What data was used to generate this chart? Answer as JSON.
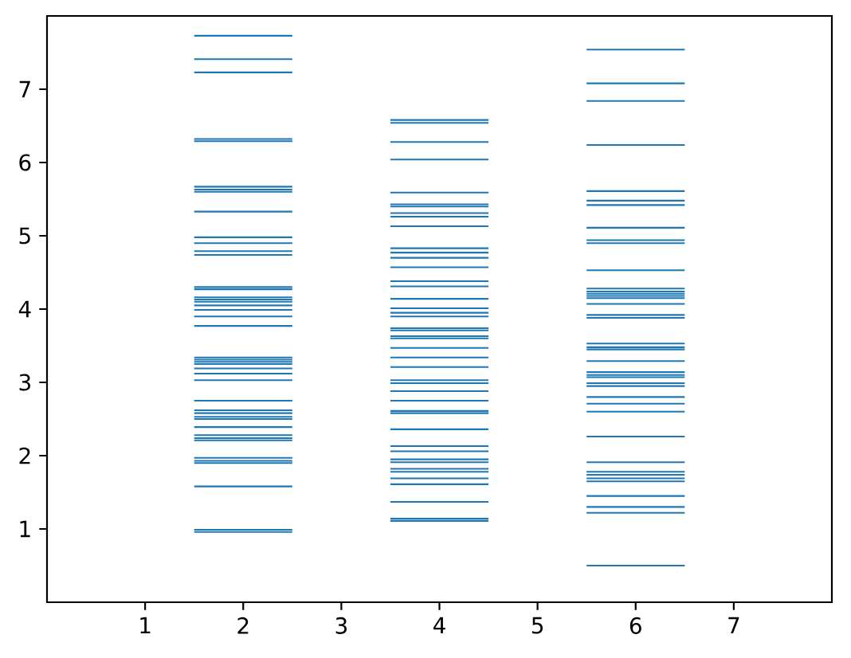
{
  "chart_data": {
    "type": "line",
    "xlim": [
      0,
      8
    ],
    "ylim": [
      0,
      8
    ],
    "xticks": [
      1,
      2,
      3,
      4,
      5,
      6,
      7
    ],
    "yticks": [
      1,
      2,
      3,
      4,
      5,
      6,
      7
    ],
    "series": [
      {
        "color": "#1f77b4",
        "x": [
          1.5,
          2.5
        ],
        "values": [
          7.73,
          7.73
        ]
      },
      {
        "color": "#1f77b4",
        "x": [
          1.5,
          2.5
        ],
        "values": [
          7.41,
          7.41
        ]
      },
      {
        "color": "#1f77b4",
        "x": [
          1.5,
          2.5
        ],
        "values": [
          7.23,
          7.23
        ]
      },
      {
        "color": "#1f77b4",
        "x": [
          1.5,
          2.5
        ],
        "values": [
          6.32,
          6.32
        ]
      },
      {
        "color": "#1f77b4",
        "x": [
          1.5,
          2.5
        ],
        "values": [
          6.29,
          6.29
        ]
      },
      {
        "color": "#1f77b4",
        "x": [
          1.5,
          2.5
        ],
        "values": [
          5.67,
          5.67
        ]
      },
      {
        "color": "#1f77b4",
        "x": [
          1.5,
          2.5
        ],
        "values": [
          5.63,
          5.63
        ]
      },
      {
        "color": "#1f77b4",
        "x": [
          1.5,
          2.5
        ],
        "values": [
          5.6,
          5.6
        ]
      },
      {
        "color": "#1f77b4",
        "x": [
          1.5,
          2.5
        ],
        "values": [
          5.33,
          5.33
        ]
      },
      {
        "color": "#1f77b4",
        "x": [
          1.5,
          2.5
        ],
        "values": [
          4.98,
          4.98
        ]
      },
      {
        "color": "#1f77b4",
        "x": [
          1.5,
          2.5
        ],
        "values": [
          4.9,
          4.9
        ]
      },
      {
        "color": "#1f77b4",
        "x": [
          1.5,
          2.5
        ],
        "values": [
          4.79,
          4.79
        ]
      },
      {
        "color": "#1f77b4",
        "x": [
          1.5,
          2.5
        ],
        "values": [
          4.74,
          4.74
        ]
      },
      {
        "color": "#1f77b4",
        "x": [
          1.5,
          2.5
        ],
        "values": [
          4.3,
          4.3
        ]
      },
      {
        "color": "#1f77b4",
        "x": [
          1.5,
          2.5
        ],
        "values": [
          4.27,
          4.27
        ]
      },
      {
        "color": "#1f77b4",
        "x": [
          1.5,
          2.5
        ],
        "values": [
          4.16,
          4.16
        ]
      },
      {
        "color": "#1f77b4",
        "x": [
          1.5,
          2.5
        ],
        "values": [
          4.13,
          4.13
        ]
      },
      {
        "color": "#1f77b4",
        "x": [
          1.5,
          2.5
        ],
        "values": [
          4.1,
          4.1
        ]
      },
      {
        "color": "#1f77b4",
        "x": [
          1.5,
          2.5
        ],
        "values": [
          4.05,
          4.05
        ]
      },
      {
        "color": "#1f77b4",
        "x": [
          1.5,
          2.5
        ],
        "values": [
          3.99,
          3.99
        ]
      },
      {
        "color": "#1f77b4",
        "x": [
          1.5,
          2.5
        ],
        "values": [
          3.9,
          3.9
        ]
      },
      {
        "color": "#1f77b4",
        "x": [
          1.5,
          2.5
        ],
        "values": [
          3.77,
          3.77
        ]
      },
      {
        "color": "#1f77b4",
        "x": [
          1.5,
          2.5
        ],
        "values": [
          3.34,
          3.34
        ]
      },
      {
        "color": "#1f77b4",
        "x": [
          1.5,
          2.5
        ],
        "values": [
          3.31,
          3.31
        ]
      },
      {
        "color": "#1f77b4",
        "x": [
          1.5,
          2.5
        ],
        "values": [
          3.28,
          3.28
        ]
      },
      {
        "color": "#1f77b4",
        "x": [
          1.5,
          2.5
        ],
        "values": [
          3.25,
          3.25
        ]
      },
      {
        "color": "#1f77b4",
        "x": [
          1.5,
          2.5
        ],
        "values": [
          3.19,
          3.19
        ]
      },
      {
        "color": "#1f77b4",
        "x": [
          1.5,
          2.5
        ],
        "values": [
          3.12,
          3.12
        ]
      },
      {
        "color": "#1f77b4",
        "x": [
          1.5,
          2.5
        ],
        "values": [
          3.03,
          3.03
        ]
      },
      {
        "color": "#1f77b4",
        "x": [
          1.5,
          2.5
        ],
        "values": [
          2.75,
          2.75
        ]
      },
      {
        "color": "#1f77b4",
        "x": [
          1.5,
          2.5
        ],
        "values": [
          2.62,
          2.62
        ]
      },
      {
        "color": "#1f77b4",
        "x": [
          1.5,
          2.5
        ],
        "values": [
          2.58,
          2.58
        ]
      },
      {
        "color": "#1f77b4",
        "x": [
          1.5,
          2.5
        ],
        "values": [
          2.53,
          2.53
        ]
      },
      {
        "color": "#1f77b4",
        "x": [
          1.5,
          2.5
        ],
        "values": [
          2.5,
          2.5
        ]
      },
      {
        "color": "#1f77b4",
        "x": [
          1.5,
          2.5
        ],
        "values": [
          2.39,
          2.39
        ]
      },
      {
        "color": "#1f77b4",
        "x": [
          1.5,
          2.5
        ],
        "values": [
          2.28,
          2.28
        ]
      },
      {
        "color": "#1f77b4",
        "x": [
          1.5,
          2.5
        ],
        "values": [
          2.24,
          2.24
        ]
      },
      {
        "color": "#1f77b4",
        "x": [
          1.5,
          2.5
        ],
        "values": [
          2.21,
          2.21
        ]
      },
      {
        "color": "#1f77b4",
        "x": [
          1.5,
          2.5
        ],
        "values": [
          1.97,
          1.97
        ]
      },
      {
        "color": "#1f77b4",
        "x": [
          1.5,
          2.5
        ],
        "values": [
          1.93,
          1.93
        ]
      },
      {
        "color": "#1f77b4",
        "x": [
          1.5,
          2.5
        ],
        "values": [
          1.9,
          1.9
        ]
      },
      {
        "color": "#1f77b4",
        "x": [
          1.5,
          2.5
        ],
        "values": [
          1.58,
          1.58
        ]
      },
      {
        "color": "#1f77b4",
        "x": [
          1.5,
          2.5
        ],
        "values": [
          0.99,
          0.99
        ]
      },
      {
        "color": "#1f77b4",
        "x": [
          1.5,
          2.5
        ],
        "values": [
          0.96,
          0.96
        ]
      },
      {
        "color": "#1f77b4",
        "x": [
          3.5,
          4.5
        ],
        "values": [
          6.58,
          6.58
        ]
      },
      {
        "color": "#1f77b4",
        "x": [
          3.5,
          4.5
        ],
        "values": [
          6.54,
          6.54
        ]
      },
      {
        "color": "#1f77b4",
        "x": [
          3.5,
          4.5
        ],
        "values": [
          6.28,
          6.28
        ]
      },
      {
        "color": "#1f77b4",
        "x": [
          3.5,
          4.5
        ],
        "values": [
          6.04,
          6.04
        ]
      },
      {
        "color": "#1f77b4",
        "x": [
          3.5,
          4.5
        ],
        "values": [
          5.59,
          5.59
        ]
      },
      {
        "color": "#1f77b4",
        "x": [
          3.5,
          4.5
        ],
        "values": [
          5.43,
          5.43
        ]
      },
      {
        "color": "#1f77b4",
        "x": [
          3.5,
          4.5
        ],
        "values": [
          5.4,
          5.4
        ]
      },
      {
        "color": "#1f77b4",
        "x": [
          3.5,
          4.5
        ],
        "values": [
          5.31,
          5.31
        ]
      },
      {
        "color": "#1f77b4",
        "x": [
          3.5,
          4.5
        ],
        "values": [
          5.26,
          5.26
        ]
      },
      {
        "color": "#1f77b4",
        "x": [
          3.5,
          4.5
        ],
        "values": [
          5.13,
          5.13
        ]
      },
      {
        "color": "#1f77b4",
        "x": [
          3.5,
          4.5
        ],
        "values": [
          4.83,
          4.83
        ]
      },
      {
        "color": "#1f77b4",
        "x": [
          3.5,
          4.5
        ],
        "values": [
          4.77,
          4.77
        ]
      },
      {
        "color": "#1f77b4",
        "x": [
          3.5,
          4.5
        ],
        "values": [
          4.7,
          4.7
        ]
      },
      {
        "color": "#1f77b4",
        "x": [
          3.5,
          4.5
        ],
        "values": [
          4.57,
          4.57
        ]
      },
      {
        "color": "#1f77b4",
        "x": [
          3.5,
          4.5
        ],
        "values": [
          4.38,
          4.38
        ]
      },
      {
        "color": "#1f77b4",
        "x": [
          3.5,
          4.5
        ],
        "values": [
          4.31,
          4.31
        ]
      },
      {
        "color": "#1f77b4",
        "x": [
          3.5,
          4.5
        ],
        "values": [
          4.14,
          4.14
        ]
      },
      {
        "color": "#1f77b4",
        "x": [
          3.5,
          4.5
        ],
        "values": [
          4.01,
          4.01
        ]
      },
      {
        "color": "#1f77b4",
        "x": [
          3.5,
          4.5
        ],
        "values": [
          3.95,
          3.95
        ]
      },
      {
        "color": "#1f77b4",
        "x": [
          3.5,
          4.5
        ],
        "values": [
          3.9,
          3.9
        ]
      },
      {
        "color": "#1f77b4",
        "x": [
          3.5,
          4.5
        ],
        "values": [
          3.74,
          3.74
        ]
      },
      {
        "color": "#1f77b4",
        "x": [
          3.5,
          4.5
        ],
        "values": [
          3.71,
          3.71
        ]
      },
      {
        "color": "#1f77b4",
        "x": [
          3.5,
          4.5
        ],
        "values": [
          3.63,
          3.63
        ]
      },
      {
        "color": "#1f77b4",
        "x": [
          3.5,
          4.5
        ],
        "values": [
          3.6,
          3.6
        ]
      },
      {
        "color": "#1f77b4",
        "x": [
          3.5,
          4.5
        ],
        "values": [
          3.47,
          3.47
        ]
      },
      {
        "color": "#1f77b4",
        "x": [
          3.5,
          4.5
        ],
        "values": [
          3.34,
          3.34
        ]
      },
      {
        "color": "#1f77b4",
        "x": [
          3.5,
          4.5
        ],
        "values": [
          3.21,
          3.21
        ]
      },
      {
        "color": "#1f77b4",
        "x": [
          3.5,
          4.5
        ],
        "values": [
          3.03,
          3.03
        ]
      },
      {
        "color": "#1f77b4",
        "x": [
          3.5,
          4.5
        ],
        "values": [
          2.99,
          2.99
        ]
      },
      {
        "color": "#1f77b4",
        "x": [
          3.5,
          4.5
        ],
        "values": [
          2.88,
          2.88
        ]
      },
      {
        "color": "#1f77b4",
        "x": [
          3.5,
          4.5
        ],
        "values": [
          2.75,
          2.75
        ]
      },
      {
        "color": "#1f77b4",
        "x": [
          3.5,
          4.5
        ],
        "values": [
          2.61,
          2.61
        ]
      },
      {
        "color": "#1f77b4",
        "x": [
          3.5,
          4.5
        ],
        "values": [
          2.58,
          2.58
        ]
      },
      {
        "color": "#1f77b4",
        "x": [
          3.5,
          4.5
        ],
        "values": [
          2.36,
          2.36
        ]
      },
      {
        "color": "#1f77b4",
        "x": [
          3.5,
          4.5
        ],
        "values": [
          2.13,
          2.13
        ]
      },
      {
        "color": "#1f77b4",
        "x": [
          3.5,
          4.5
        ],
        "values": [
          2.06,
          2.06
        ]
      },
      {
        "color": "#1f77b4",
        "x": [
          3.5,
          4.5
        ],
        "values": [
          1.95,
          1.95
        ]
      },
      {
        "color": "#1f77b4",
        "x": [
          3.5,
          4.5
        ],
        "values": [
          1.91,
          1.91
        ]
      },
      {
        "color": "#1f77b4",
        "x": [
          3.5,
          4.5
        ],
        "values": [
          1.82,
          1.82
        ]
      },
      {
        "color": "#1f77b4",
        "x": [
          3.5,
          4.5
        ],
        "values": [
          1.78,
          1.78
        ]
      },
      {
        "color": "#1f77b4",
        "x": [
          3.5,
          4.5
        ],
        "values": [
          1.69,
          1.69
        ]
      },
      {
        "color": "#1f77b4",
        "x": [
          3.5,
          4.5
        ],
        "values": [
          1.61,
          1.61
        ]
      },
      {
        "color": "#1f77b4",
        "x": [
          3.5,
          4.5
        ],
        "values": [
          1.37,
          1.37
        ]
      },
      {
        "color": "#1f77b4",
        "x": [
          3.5,
          4.5
        ],
        "values": [
          1.14,
          1.14
        ]
      },
      {
        "color": "#1f77b4",
        "x": [
          3.5,
          4.5
        ],
        "values": [
          1.11,
          1.11
        ]
      },
      {
        "color": "#1f77b4",
        "x": [
          5.5,
          6.5
        ],
        "values": [
          7.54,
          7.54
        ]
      },
      {
        "color": "#1f77b4",
        "x": [
          5.5,
          6.5
        ],
        "values": [
          7.08,
          7.08
        ]
      },
      {
        "color": "#1f77b4",
        "x": [
          5.5,
          6.5
        ],
        "values": [
          6.84,
          6.84
        ]
      },
      {
        "color": "#1f77b4",
        "x": [
          5.5,
          6.5
        ],
        "values": [
          6.24,
          6.24
        ]
      },
      {
        "color": "#1f77b4",
        "x": [
          5.5,
          6.5
        ],
        "values": [
          5.61,
          5.61
        ]
      },
      {
        "color": "#1f77b4",
        "x": [
          5.5,
          6.5
        ],
        "values": [
          5.48,
          5.48
        ]
      },
      {
        "color": "#1f77b4",
        "x": [
          5.5,
          6.5
        ],
        "values": [
          5.42,
          5.42
        ]
      },
      {
        "color": "#1f77b4",
        "x": [
          5.5,
          6.5
        ],
        "values": [
          5.11,
          5.11
        ]
      },
      {
        "color": "#1f77b4",
        "x": [
          5.5,
          6.5
        ],
        "values": [
          4.94,
          4.94
        ]
      },
      {
        "color": "#1f77b4",
        "x": [
          5.5,
          6.5
        ],
        "values": [
          4.9,
          4.9
        ]
      },
      {
        "color": "#1f77b4",
        "x": [
          5.5,
          6.5
        ],
        "values": [
          4.53,
          4.53
        ]
      },
      {
        "color": "#1f77b4",
        "x": [
          5.5,
          6.5
        ],
        "values": [
          4.28,
          4.28
        ]
      },
      {
        "color": "#1f77b4",
        "x": [
          5.5,
          6.5
        ],
        "values": [
          4.24,
          4.24
        ]
      },
      {
        "color": "#1f77b4",
        "x": [
          5.5,
          6.5
        ],
        "values": [
          4.21,
          4.21
        ]
      },
      {
        "color": "#1f77b4",
        "x": [
          5.5,
          6.5
        ],
        "values": [
          4.18,
          4.18
        ]
      },
      {
        "color": "#1f77b4",
        "x": [
          5.5,
          6.5
        ],
        "values": [
          4.15,
          4.15
        ]
      },
      {
        "color": "#1f77b4",
        "x": [
          5.5,
          6.5
        ],
        "values": [
          4.07,
          4.07
        ]
      },
      {
        "color": "#1f77b4",
        "x": [
          5.5,
          6.5
        ],
        "values": [
          3.92,
          3.92
        ]
      },
      {
        "color": "#1f77b4",
        "x": [
          5.5,
          6.5
        ],
        "values": [
          3.88,
          3.88
        ]
      },
      {
        "color": "#1f77b4",
        "x": [
          5.5,
          6.5
        ],
        "values": [
          3.53,
          3.53
        ]
      },
      {
        "color": "#1f77b4",
        "x": [
          5.5,
          6.5
        ],
        "values": [
          3.48,
          3.48
        ]
      },
      {
        "color": "#1f77b4",
        "x": [
          5.5,
          6.5
        ],
        "values": [
          3.45,
          3.45
        ]
      },
      {
        "color": "#1f77b4",
        "x": [
          5.5,
          6.5
        ],
        "values": [
          3.29,
          3.29
        ]
      },
      {
        "color": "#1f77b4",
        "x": [
          5.5,
          6.5
        ],
        "values": [
          3.14,
          3.14
        ]
      },
      {
        "color": "#1f77b4",
        "x": [
          5.5,
          6.5
        ],
        "values": [
          3.1,
          3.1
        ]
      },
      {
        "color": "#1f77b4",
        "x": [
          5.5,
          6.5
        ],
        "values": [
          3.07,
          3.07
        ]
      },
      {
        "color": "#1f77b4",
        "x": [
          5.5,
          6.5
        ],
        "values": [
          2.99,
          2.99
        ]
      },
      {
        "color": "#1f77b4",
        "x": [
          5.5,
          6.5
        ],
        "values": [
          2.95,
          2.95
        ]
      },
      {
        "color": "#1f77b4",
        "x": [
          5.5,
          6.5
        ],
        "values": [
          2.8,
          2.8
        ]
      },
      {
        "color": "#1f77b4",
        "x": [
          5.5,
          6.5
        ],
        "values": [
          2.71,
          2.71
        ]
      },
      {
        "color": "#1f77b4",
        "x": [
          5.5,
          6.5
        ],
        "values": [
          2.6,
          2.6
        ]
      },
      {
        "color": "#1f77b4",
        "x": [
          5.5,
          6.5
        ],
        "values": [
          2.26,
          2.26
        ]
      },
      {
        "color": "#1f77b4",
        "x": [
          5.5,
          6.5
        ],
        "values": [
          1.91,
          1.91
        ]
      },
      {
        "color": "#1f77b4",
        "x": [
          5.5,
          6.5
        ],
        "values": [
          1.78,
          1.78
        ]
      },
      {
        "color": "#1f77b4",
        "x": [
          5.5,
          6.5
        ],
        "values": [
          1.74,
          1.74
        ]
      },
      {
        "color": "#1f77b4",
        "x": [
          5.5,
          6.5
        ],
        "values": [
          1.69,
          1.69
        ]
      },
      {
        "color": "#1f77b4",
        "x": [
          5.5,
          6.5
        ],
        "values": [
          1.65,
          1.65
        ]
      },
      {
        "color": "#1f77b4",
        "x": [
          5.5,
          6.5
        ],
        "values": [
          1.45,
          1.45
        ]
      },
      {
        "color": "#1f77b4",
        "x": [
          5.5,
          6.5
        ],
        "values": [
          1.3,
          1.3
        ]
      },
      {
        "color": "#1f77b4",
        "x": [
          5.5,
          6.5
        ],
        "values": [
          1.22,
          1.22
        ]
      },
      {
        "color": "#1f77b4",
        "x": [
          5.5,
          6.5
        ],
        "values": [
          0.5,
          0.5
        ]
      }
    ]
  }
}
